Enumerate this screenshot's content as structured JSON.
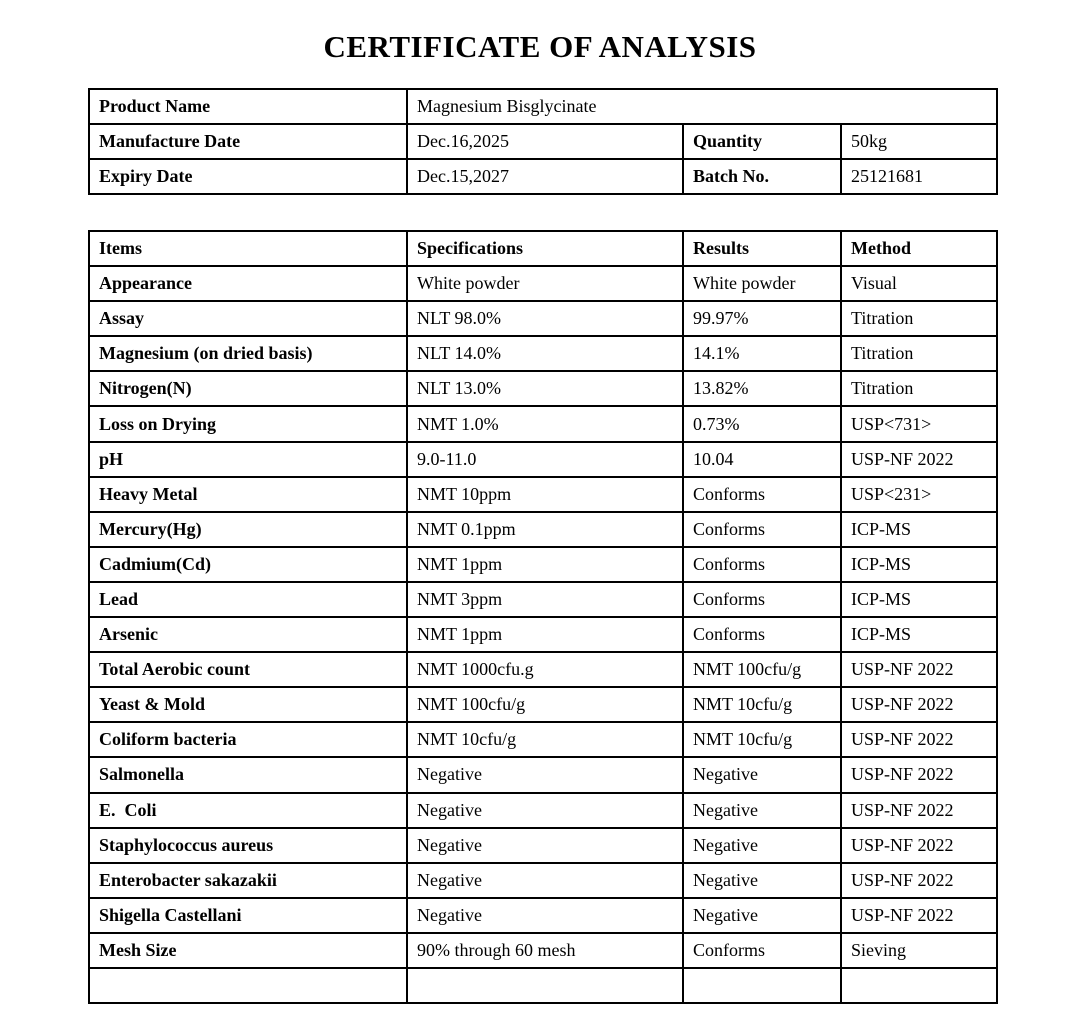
{
  "title": "CERTIFICATE OF ANALYSIS",
  "info": {
    "product_label": "Product Name",
    "product_value": "Magnesium Bisglycinate",
    "mfg_label": "Manufacture Date",
    "mfg_value": "Dec.16,2025",
    "qty_label": "Quantity",
    "qty_value": "50kg",
    "exp_label": "Expiry Date",
    "exp_value": "Dec.15,2027",
    "batch_label": "Batch No.",
    "batch_value": "25121681"
  },
  "analysis": {
    "headers": [
      "Items",
      "Specifications",
      "Results",
      "Method"
    ],
    "rows": [
      [
        "Appearance",
        "White powder",
        "White powder",
        "Visual"
      ],
      [
        "Assay",
        "NLT 98.0%",
        "99.97%",
        "Titration"
      ],
      [
        "Magnesium (on dried basis)",
        "NLT 14.0%",
        "14.1%",
        "Titration"
      ],
      [
        "Nitrogen(N)",
        "NLT 13.0%",
        "13.82%",
        "Titration"
      ],
      [
        "Loss on Drying",
        "NMT 1.0%",
        "0.73%",
        "USP<731>"
      ],
      [
        "pH",
        "9.0-11.0",
        "10.04",
        "USP-NF 2022"
      ],
      [
        "Heavy Metal",
        "NMT 10ppm",
        "Conforms",
        "USP<231>"
      ],
      [
        "Mercury(Hg)",
        "NMT 0.1ppm",
        "Conforms",
        "ICP-MS"
      ],
      [
        "Cadmium(Cd)",
        "NMT 1ppm",
        "Conforms",
        "ICP-MS"
      ],
      [
        "Lead",
        "NMT 3ppm",
        "Conforms",
        "ICP-MS"
      ],
      [
        "Arsenic",
        "NMT 1ppm",
        "Conforms",
        "ICP-MS"
      ],
      [
        "Total Aerobic count",
        "NMT 1000cfu.g",
        "NMT 100cfu/g",
        "USP-NF 2022"
      ],
      [
        "Yeast & Mold",
        "NMT 100cfu/g",
        "NMT 10cfu/g",
        "USP-NF 2022"
      ],
      [
        "Coliform bacteria",
        "NMT 10cfu/g",
        "NMT 10cfu/g",
        "USP-NF 2022"
      ],
      [
        "Salmonella",
        "Negative",
        "Negative",
        "USP-NF 2022"
      ],
      [
        "E.  Coli",
        "Negative",
        "Negative",
        "USP-NF 2022"
      ],
      [
        "Staphylococcus aureus",
        "Negative",
        "Negative",
        "USP-NF 2022"
      ],
      [
        "Enterobacter sakazakii",
        "Negative",
        "Negative",
        "USP-NF 2022"
      ],
      [
        "Shigella Castellani",
        "Negative",
        "Negative",
        "USP-NF 2022"
      ],
      [
        "Mesh Size",
        "90% through 60 mesh",
        "Conforms",
        "Sieving"
      ]
    ]
  }
}
